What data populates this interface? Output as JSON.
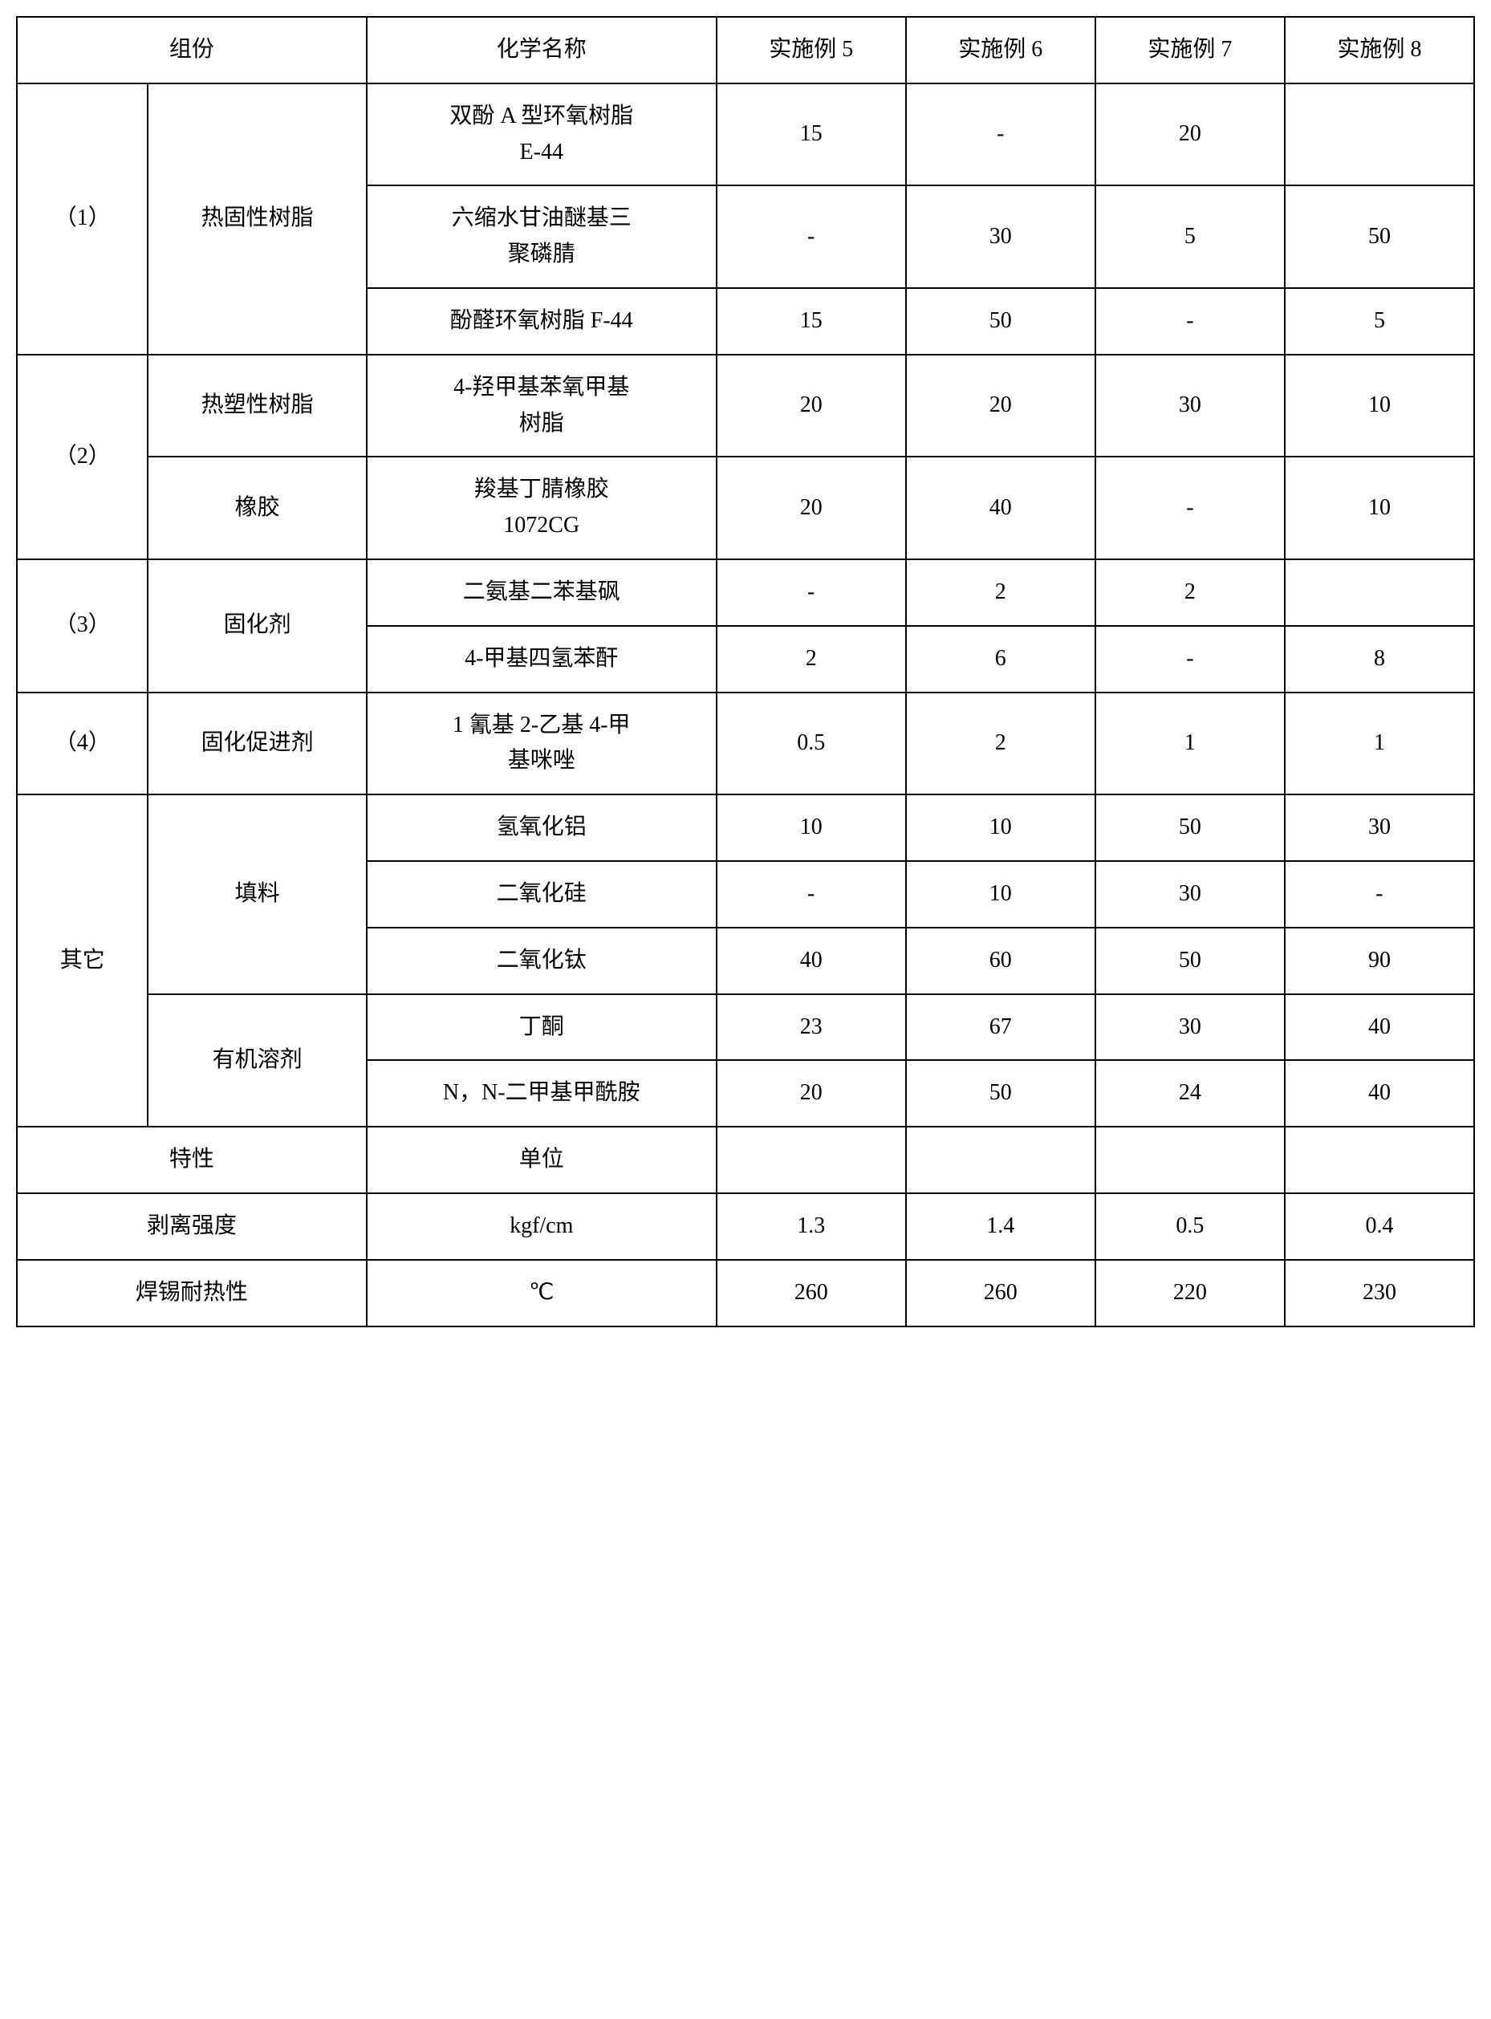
{
  "header": {
    "component": "组份",
    "chemName": "化学名称",
    "ex5": "实施例 5",
    "ex6": "实施例 6",
    "ex7": "实施例 7",
    "ex8": "实施例 8"
  },
  "groups": {
    "g1": {
      "num": "（1）",
      "label": "热固性树脂"
    },
    "g2": {
      "num": "（2）",
      "label_a": "热塑性树脂",
      "label_b": "橡胶"
    },
    "g3": {
      "num": "（3）",
      "label": "固化剂"
    },
    "g4": {
      "num": "（4）",
      "label": "固化促进剂"
    },
    "other": {
      "label": "其它",
      "filler": "填料",
      "solvent": "有机溶剂"
    }
  },
  "rows": {
    "r1": {
      "chem": "双酚 A 型环氧树脂\nE-44",
      "v5": "15",
      "v6": "-",
      "v7": "20",
      "v8": ""
    },
    "r2": {
      "chem": "六缩水甘油醚基三\n聚磷腈",
      "v5": "-",
      "v6": "30",
      "v7": "5",
      "v8": "50"
    },
    "r3": {
      "chem": "酚醛环氧树脂 F-44",
      "v5": "15",
      "v6": "50",
      "v7": "-",
      "v8": "5"
    },
    "r4": {
      "chem": "4-羟甲基苯氧甲基\n树脂",
      "v5": "20",
      "v6": "20",
      "v7": "30",
      "v8": "10"
    },
    "r5": {
      "chem": "羧基丁腈橡胶\n1072CG",
      "v5": "20",
      "v6": "40",
      "v7": "-",
      "v8": "10"
    },
    "r6": {
      "chem": "二氨基二苯基砜",
      "v5": "-",
      "v6": "2",
      "v7": "2",
      "v8": ""
    },
    "r7": {
      "chem": "4-甲基四氢苯酐",
      "v5": "2",
      "v6": "6",
      "v7": "-",
      "v8": "8"
    },
    "r8": {
      "chem": "1 氰基 2-乙基 4-甲\n基咪唑",
      "v5": "0.5",
      "v6": "2",
      "v7": "1",
      "v8": "1"
    },
    "r9": {
      "chem": "氢氧化铝",
      "v5": "10",
      "v6": "10",
      "v7": "50",
      "v8": "30"
    },
    "r10": {
      "chem": "二氧化硅",
      "v5": "-",
      "v6": "10",
      "v7": "30",
      "v8": "-"
    },
    "r11": {
      "chem": "二氧化钛",
      "v5": "40",
      "v6": "60",
      "v7": "50",
      "v8": "90"
    },
    "r12": {
      "chem": "丁酮",
      "v5": "23",
      "v6": "67",
      "v7": "30",
      "v8": "40"
    },
    "r13": {
      "chem": "N，N-二甲基甲酰胺",
      "v5": "20",
      "v6": "50",
      "v7": "24",
      "v8": "40"
    }
  },
  "footer": {
    "prop": "特性",
    "unit": "单位",
    "peel": {
      "label": "剥离强度",
      "unit": "kgf/cm",
      "v5": "1.3",
      "v6": "1.4",
      "v7": "0.5",
      "v8": "0.4"
    },
    "solder": {
      "label": "焊锡耐热性",
      "unit": "℃",
      "v5": "260",
      "v6": "260",
      "v7": "220",
      "v8": "230"
    }
  }
}
